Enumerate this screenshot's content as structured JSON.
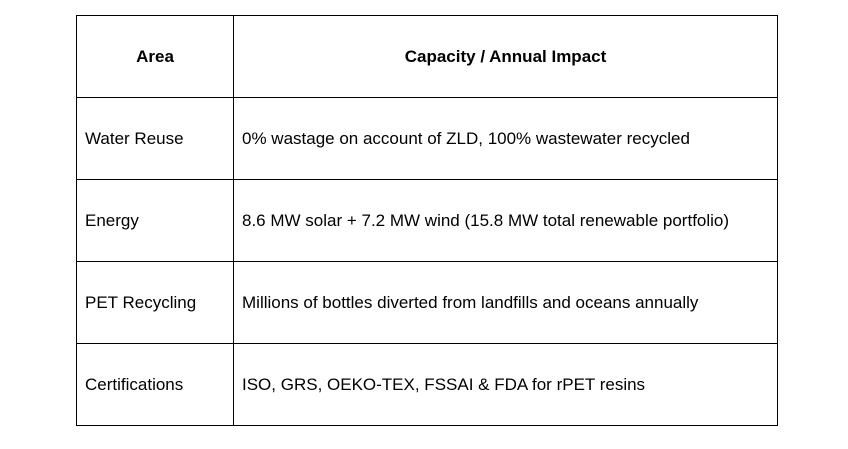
{
  "table": {
    "headers": {
      "area": "Area",
      "impact": "Capacity / Annual Impact"
    },
    "rows": [
      {
        "area": "Water Reuse",
        "impact": "0% wastage on account of ZLD, 100% wastewater recycled"
      },
      {
        "area": "Energy",
        "impact": "8.6 MW solar + 7.2 MW wind (15.8 MW total renewable portfolio)"
      },
      {
        "area": "PET Recycling",
        "impact": "Millions of bottles diverted from landfills and oceans annually"
      },
      {
        "area": "Certifications",
        "impact": "ISO, GRS, OEKO-TEX, FSSAI & FDA for rPET resins"
      }
    ]
  }
}
